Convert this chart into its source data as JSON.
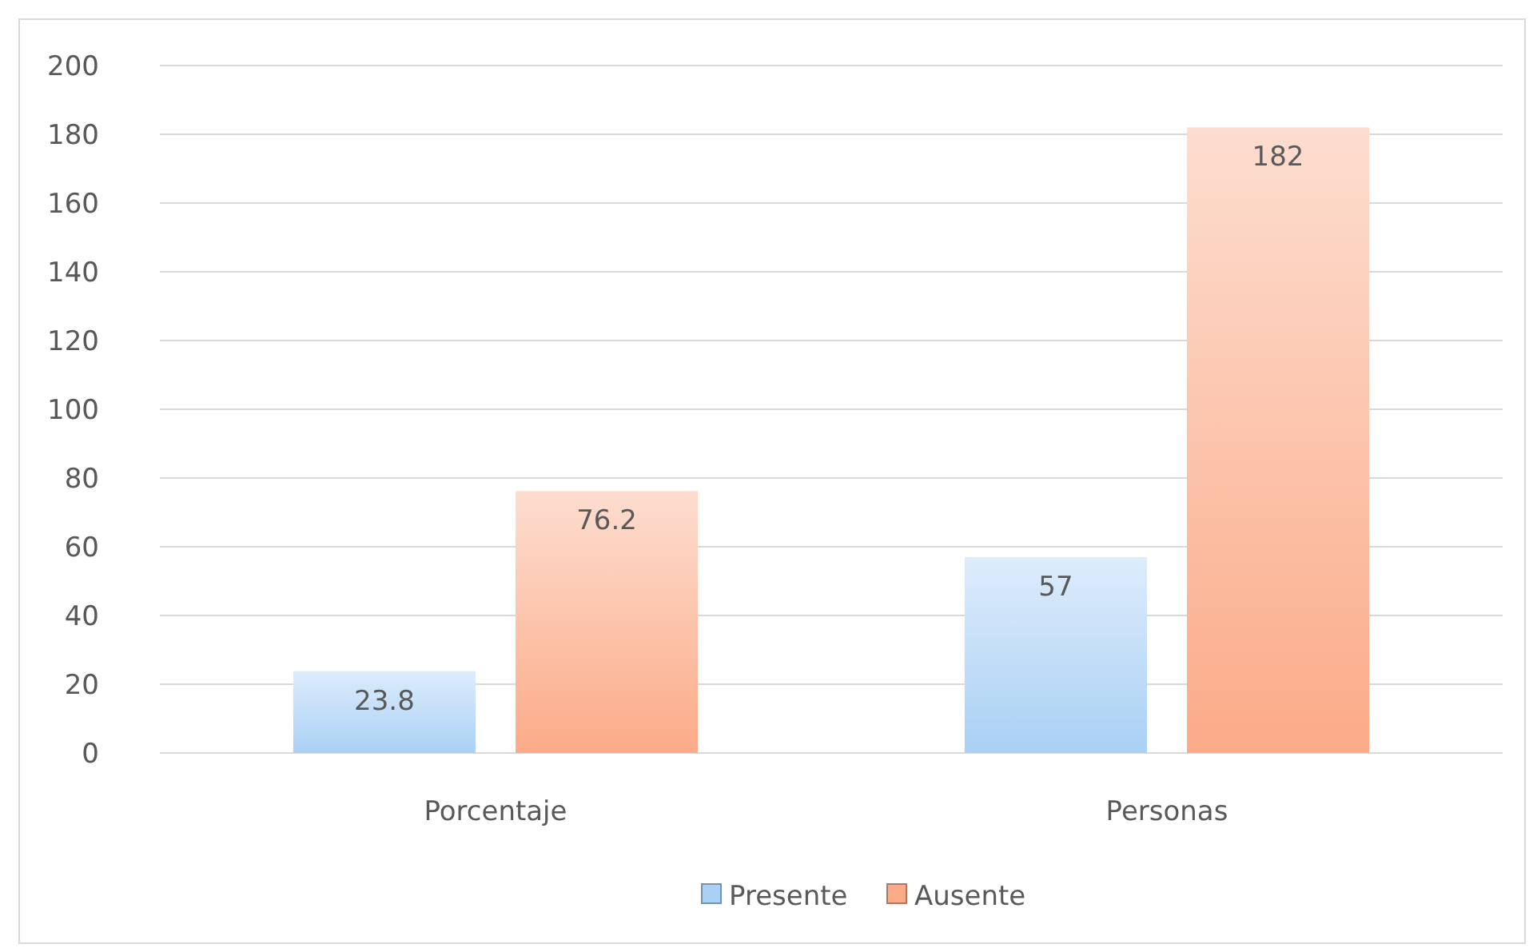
{
  "chart_data": {
    "type": "bar",
    "categories": [
      "Porcentaje",
      "Personas"
    ],
    "series": [
      {
        "name": "Presente",
        "color": "#a9d0f5",
        "values": [
          23.8,
          57
        ]
      },
      {
        "name": "Ausente",
        "color": "#fbab88",
        "values": [
          76.2,
          182
        ]
      }
    ],
    "ylim": [
      0,
      200
    ],
    "yticks": [
      0,
      20,
      40,
      60,
      80,
      100,
      120,
      140,
      160,
      180,
      200
    ],
    "grid": "y",
    "legend": "bottom",
    "data_labels": true
  }
}
